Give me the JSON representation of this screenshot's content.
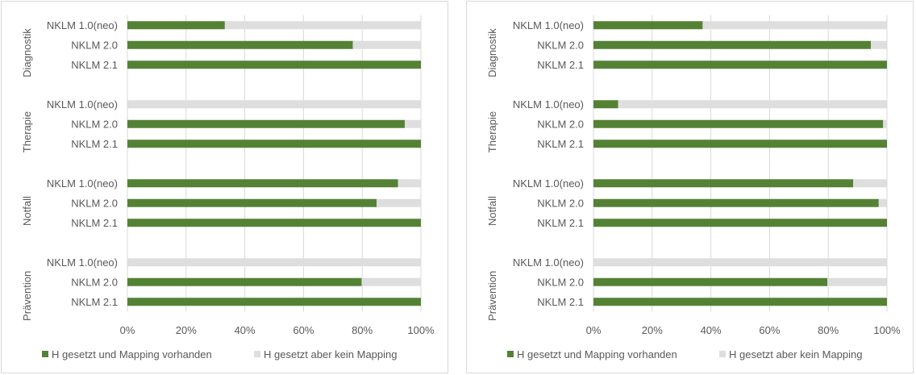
{
  "chart_data": [
    {
      "type": "bar",
      "orientation": "horizontal",
      "stacked": "percent",
      "groups": [
        "Diagnostik",
        "Therapie",
        "Notfall",
        "Prävention"
      ],
      "categories": [
        "NKLM 1.0(neo)",
        "NKLM 2.0",
        "NKLM 2.1"
      ],
      "series": [
        {
          "name": "H gesetzt und Mapping vorhanden",
          "color": "#548235",
          "values": [
            [
              33.2,
              76.8,
              100
            ],
            [
              0,
              94.5,
              100
            ],
            [
              92.2,
              84.9,
              100
            ],
            [
              0,
              79.8,
              100
            ]
          ]
        },
        {
          "name": "H gesetzt aber kein Mapping",
          "color": "#dedede",
          "values": [
            [
              66.8,
              23.2,
              0
            ],
            [
              100,
              5.5,
              0
            ],
            [
              7.8,
              15.1,
              0
            ],
            [
              100,
              20.2,
              0
            ]
          ]
        }
      ],
      "xticks": [
        "0%",
        "20%",
        "40%",
        "60%",
        "80%",
        "100%"
      ],
      "xlim": [
        0,
        100
      ],
      "grid": true,
      "legend": "bottom"
    },
    {
      "type": "bar",
      "orientation": "horizontal",
      "stacked": "percent",
      "groups": [
        "Diagnostik",
        "Therapie",
        "Notfall",
        "Prävention"
      ],
      "categories": [
        "NKLM 1.0(neo)",
        "NKLM 2.0",
        "NKLM 2.1"
      ],
      "series": [
        {
          "name": "H gesetzt und Mapping vorhanden",
          "color": "#548235",
          "values": [
            [
              37.2,
              94.5,
              100
            ],
            [
              8.4,
              98.7,
              100
            ],
            [
              88.5,
              97.2,
              100
            ],
            [
              0,
              79.7,
              100
            ]
          ]
        },
        {
          "name": "H gesetzt aber kein Mapping",
          "color": "#dedede",
          "values": [
            [
              62.8,
              5.5,
              0
            ],
            [
              91.6,
              1.3,
              0
            ],
            [
              11.5,
              2.8,
              0
            ],
            [
              100,
              20.3,
              0
            ]
          ]
        }
      ],
      "xticks": [
        "0%",
        "20%",
        "40%",
        "60%",
        "80%",
        "100%"
      ],
      "xlim": [
        0,
        100
      ],
      "grid": true,
      "legend": "bottom"
    }
  ]
}
